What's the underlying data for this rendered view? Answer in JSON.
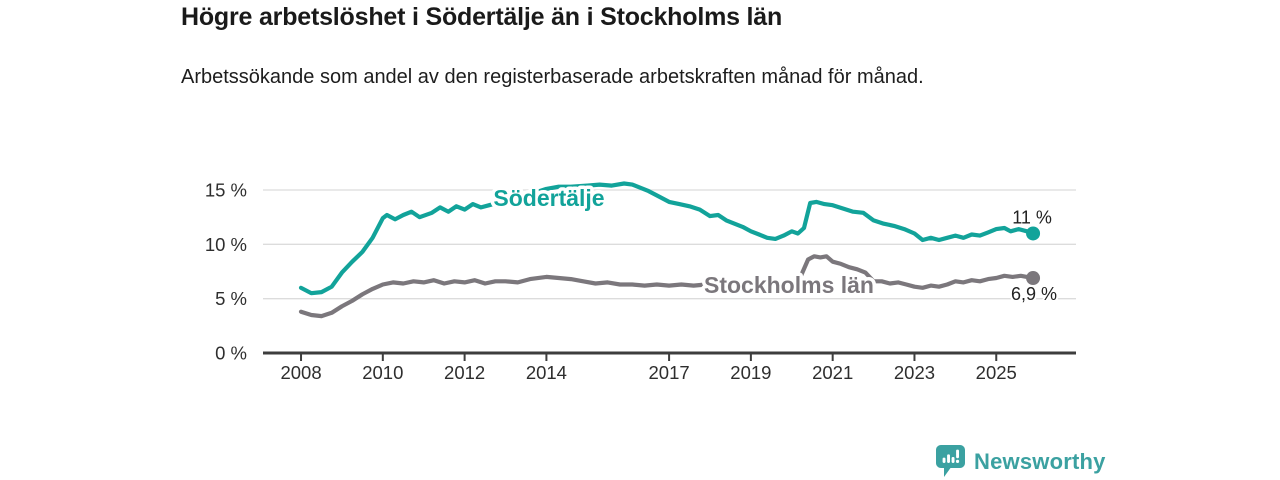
{
  "brand": {
    "name": "Newsworthy"
  },
  "colors": {
    "sodertalje_teal": "#12a39a",
    "stockholm_gray": "#7b777c",
    "logo_teal": "#3ba1a1",
    "axis_dark": "#3d3d3d",
    "grid_light": "#dcdcdc",
    "text_dark": "#1d1d1d",
    "annotation_dark": "#222222"
  },
  "chart_data": {
    "type": "line",
    "title": "Högre arbetslöshet i Södertälje än i Stockholms län",
    "subtitle": "Arbetssökande som andel av den registerbaserade arbetskraften månad för månad.",
    "x_axis": {
      "lim": [
        2007.07,
        2026.95
      ],
      "ticks": [
        2008,
        2010,
        2012,
        2014,
        2017,
        2019,
        2021,
        2023,
        2025
      ],
      "tick_labels": [
        "2008",
        "2010",
        "2012",
        "2014",
        "2017",
        "2019",
        "2021",
        "2023",
        "2025"
      ]
    },
    "y_axis": {
      "lim": [
        0,
        17.3
      ],
      "ticks": [
        {
          "value": 0,
          "label": "0 %"
        },
        {
          "value": 5,
          "label": "5 %"
        },
        {
          "value": 10,
          "label": "10 %"
        },
        {
          "value": 15,
          "label": "15 %"
        }
      ],
      "grid": true
    },
    "legend_position": "inline-labels-on-lines",
    "series": [
      {
        "name": "Södertälje",
        "color": "#12a39a",
        "end_label": "11 %",
        "end_value": 11.0,
        "points": [
          [
            2008.0,
            6.0
          ],
          [
            2008.25,
            5.5
          ],
          [
            2008.5,
            5.6
          ],
          [
            2008.75,
            6.1
          ],
          [
            2009.0,
            7.4
          ],
          [
            2009.25,
            8.4
          ],
          [
            2009.5,
            9.3
          ],
          [
            2009.75,
            10.6
          ],
          [
            2010.0,
            12.4
          ],
          [
            2010.1,
            12.7
          ],
          [
            2010.3,
            12.3
          ],
          [
            2010.5,
            12.7
          ],
          [
            2010.7,
            13.0
          ],
          [
            2010.9,
            12.5
          ],
          [
            2011.2,
            12.9
          ],
          [
            2011.4,
            13.4
          ],
          [
            2011.6,
            13.0
          ],
          [
            2011.8,
            13.5
          ],
          [
            2012.0,
            13.2
          ],
          [
            2012.2,
            13.7
          ],
          [
            2012.4,
            13.4
          ],
          [
            2012.6,
            13.6
          ],
          [
            2012.8,
            13.8
          ],
          [
            2013.0,
            13.9
          ],
          [
            2013.3,
            14.2
          ],
          [
            2013.6,
            14.6
          ],
          [
            2014.0,
            15.1
          ],
          [
            2014.3,
            15.3
          ],
          [
            2014.6,
            15.3
          ],
          [
            2015.0,
            15.4
          ],
          [
            2015.3,
            15.5
          ],
          [
            2015.6,
            15.4
          ],
          [
            2015.9,
            15.6
          ],
          [
            2016.1,
            15.5
          ],
          [
            2016.3,
            15.2
          ],
          [
            2016.5,
            14.9
          ],
          [
            2016.75,
            14.4
          ],
          [
            2017.0,
            13.9
          ],
          [
            2017.25,
            13.7
          ],
          [
            2017.5,
            13.5
          ],
          [
            2017.75,
            13.2
          ],
          [
            2018.0,
            12.6
          ],
          [
            2018.2,
            12.7
          ],
          [
            2018.4,
            12.2
          ],
          [
            2018.6,
            11.9
          ],
          [
            2018.8,
            11.6
          ],
          [
            2019.0,
            11.2
          ],
          [
            2019.2,
            10.9
          ],
          [
            2019.4,
            10.6
          ],
          [
            2019.6,
            10.5
          ],
          [
            2019.8,
            10.8
          ],
          [
            2020.0,
            11.2
          ],
          [
            2020.15,
            11.0
          ],
          [
            2020.3,
            11.5
          ],
          [
            2020.45,
            13.8
          ],
          [
            2020.6,
            13.9
          ],
          [
            2020.8,
            13.7
          ],
          [
            2021.0,
            13.6
          ],
          [
            2021.25,
            13.3
          ],
          [
            2021.5,
            13.0
          ],
          [
            2021.75,
            12.9
          ],
          [
            2022.0,
            12.2
          ],
          [
            2022.25,
            11.9
          ],
          [
            2022.5,
            11.7
          ],
          [
            2022.75,
            11.4
          ],
          [
            2023.0,
            11.0
          ],
          [
            2023.2,
            10.4
          ],
          [
            2023.4,
            10.6
          ],
          [
            2023.6,
            10.4
          ],
          [
            2023.8,
            10.6
          ],
          [
            2024.0,
            10.8
          ],
          [
            2024.2,
            10.6
          ],
          [
            2024.4,
            10.9
          ],
          [
            2024.6,
            10.8
          ],
          [
            2024.8,
            11.1
          ],
          [
            2025.0,
            11.4
          ],
          [
            2025.2,
            11.5
          ],
          [
            2025.35,
            11.2
          ],
          [
            2025.55,
            11.4
          ],
          [
            2025.75,
            11.2
          ],
          [
            2025.9,
            11.0
          ]
        ]
      },
      {
        "name": "Stockholms län",
        "color": "#7b777c",
        "end_label": "6,9 %",
        "end_value": 6.9,
        "points": [
          [
            2008.0,
            3.8
          ],
          [
            2008.25,
            3.5
          ],
          [
            2008.5,
            3.4
          ],
          [
            2008.75,
            3.7
          ],
          [
            2009.0,
            4.3
          ],
          [
            2009.25,
            4.8
          ],
          [
            2009.5,
            5.4
          ],
          [
            2009.75,
            5.9
          ],
          [
            2010.0,
            6.3
          ],
          [
            2010.25,
            6.5
          ],
          [
            2010.5,
            6.4
          ],
          [
            2010.75,
            6.6
          ],
          [
            2011.0,
            6.5
          ],
          [
            2011.25,
            6.7
          ],
          [
            2011.5,
            6.4
          ],
          [
            2011.75,
            6.6
          ],
          [
            2012.0,
            6.5
          ],
          [
            2012.25,
            6.7
          ],
          [
            2012.5,
            6.4
          ],
          [
            2012.75,
            6.6
          ],
          [
            2013.0,
            6.6
          ],
          [
            2013.3,
            6.5
          ],
          [
            2013.6,
            6.8
          ],
          [
            2014.0,
            7.0
          ],
          [
            2014.3,
            6.9
          ],
          [
            2014.6,
            6.8
          ],
          [
            2014.9,
            6.6
          ],
          [
            2015.2,
            6.4
          ],
          [
            2015.5,
            6.5
          ],
          [
            2015.8,
            6.3
          ],
          [
            2016.1,
            6.3
          ],
          [
            2016.4,
            6.2
          ],
          [
            2016.7,
            6.3
          ],
          [
            2017.0,
            6.2
          ],
          [
            2017.3,
            6.3
          ],
          [
            2017.6,
            6.2
          ],
          [
            2017.9,
            6.3
          ],
          [
            2018.2,
            6.2
          ],
          [
            2018.5,
            6.1
          ],
          [
            2018.8,
            6.2
          ],
          [
            2019.1,
            6.1
          ],
          [
            2019.4,
            6.2
          ],
          [
            2019.7,
            6.2
          ],
          [
            2020.0,
            6.5
          ],
          [
            2020.2,
            6.9
          ],
          [
            2020.4,
            8.6
          ],
          [
            2020.55,
            8.9
          ],
          [
            2020.7,
            8.8
          ],
          [
            2020.85,
            8.9
          ],
          [
            2021.0,
            8.4
          ],
          [
            2021.2,
            8.2
          ],
          [
            2021.4,
            7.9
          ],
          [
            2021.6,
            7.7
          ],
          [
            2021.8,
            7.4
          ],
          [
            2022.0,
            6.6
          ],
          [
            2022.2,
            6.6
          ],
          [
            2022.4,
            6.4
          ],
          [
            2022.6,
            6.5
          ],
          [
            2022.8,
            6.3
          ],
          [
            2023.0,
            6.1
          ],
          [
            2023.2,
            6.0
          ],
          [
            2023.4,
            6.2
          ],
          [
            2023.6,
            6.1
          ],
          [
            2023.8,
            6.3
          ],
          [
            2024.0,
            6.6
          ],
          [
            2024.2,
            6.5
          ],
          [
            2024.4,
            6.7
          ],
          [
            2024.6,
            6.6
          ],
          [
            2024.8,
            6.8
          ],
          [
            2025.0,
            6.9
          ],
          [
            2025.2,
            7.1
          ],
          [
            2025.4,
            7.0
          ],
          [
            2025.6,
            7.1
          ],
          [
            2025.75,
            7.0
          ],
          [
            2025.9,
            6.9
          ]
        ]
      }
    ]
  }
}
